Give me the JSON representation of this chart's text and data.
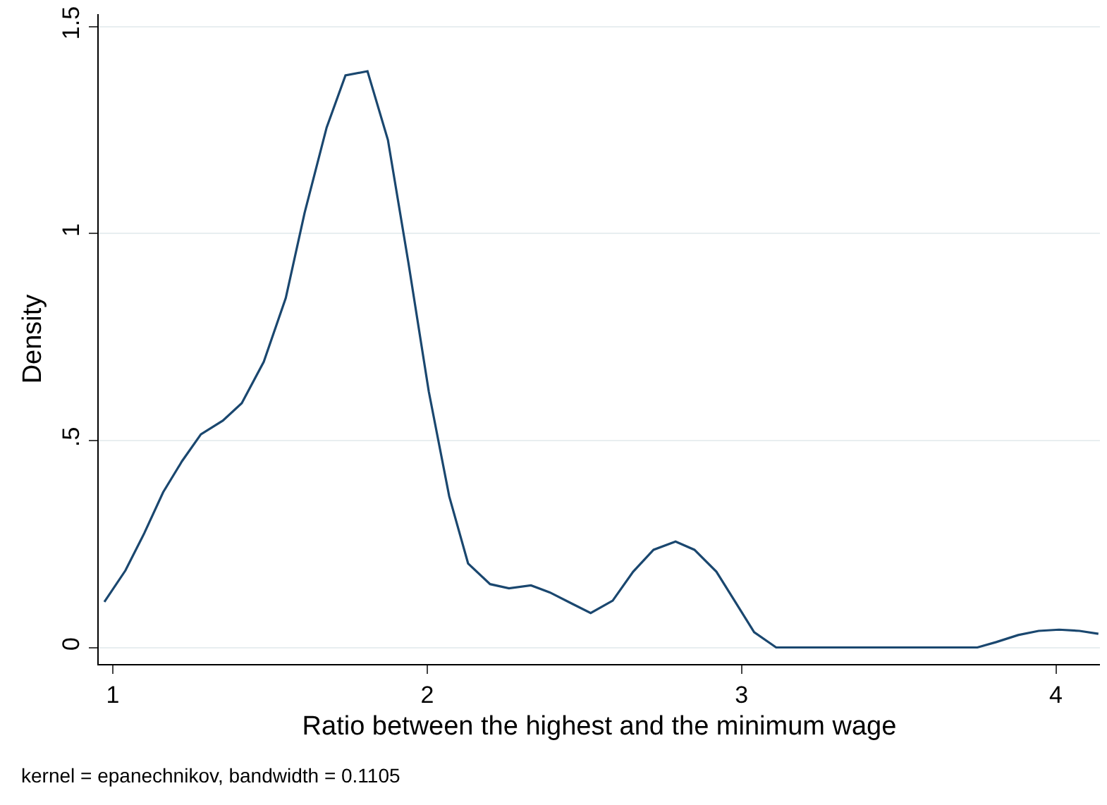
{
  "chart_data": {
    "type": "line",
    "xlabel": "Ratio between the highest and the minimum wage",
    "ylabel": "Density",
    "x": [
      0.973,
      1.04,
      1.1,
      1.16,
      1.22,
      1.28,
      1.35,
      1.41,
      1.48,
      1.55,
      1.61,
      1.68,
      1.74,
      1.81,
      1.875,
      1.94,
      2.005,
      2.07,
      2.13,
      2.2,
      2.26,
      2.33,
      2.39,
      2.46,
      2.52,
      2.59,
      2.655,
      2.72,
      2.79,
      2.85,
      2.92,
      2.98,
      3.04,
      3.11,
      3.3,
      3.5,
      3.75,
      3.81,
      3.88,
      3.945,
      4.01,
      4.075,
      4.135
    ],
    "series": [
      {
        "color": "#1a476f",
        "values": [
          0.11,
          0.186,
          0.276,
          0.375,
          0.45,
          0.515,
          0.548,
          0.59,
          0.69,
          0.844,
          1.05,
          1.256,
          1.382,
          1.392,
          1.226,
          0.93,
          0.618,
          0.365,
          0.203,
          0.153,
          0.143,
          0.15,
          0.133,
          0.106,
          0.083,
          0.113,
          0.183,
          0.236,
          0.256,
          0.236,
          0.183,
          0.11,
          0.037,
          0,
          0,
          0,
          0,
          0.013,
          0.03,
          0.04,
          0.043,
          0.04,
          0.033
        ]
      }
    ],
    "xlim": [
      0.955,
      4.14
    ],
    "xticks": [
      1,
      2,
      3,
      4
    ],
    "ylim": [
      -0.04,
      1.53
    ],
    "yticks": [
      0,
      {
        "value": 0.5,
        "label": ".5"
      },
      1,
      1.5
    ],
    "grid": "y",
    "marker": "none",
    "line_style": "solid",
    "annotations": [
      "kernel = epanechnikov, bandwidth = 0.1105"
    ]
  }
}
